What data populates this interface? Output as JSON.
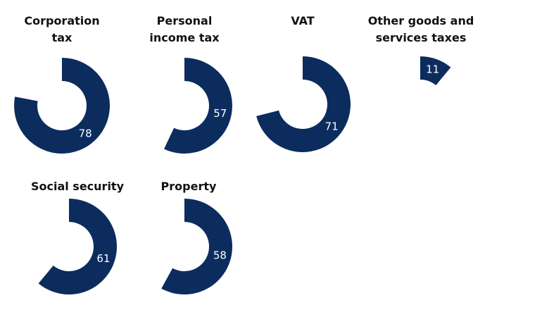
{
  "chart_data": [
    {
      "type": "donut",
      "title": "Corporation tax",
      "values": [
        78
      ],
      "color": "#0c2c5e",
      "ylim": [
        0,
        100
      ]
    },
    {
      "type": "donut",
      "title": "Personal income tax",
      "values": [
        57
      ],
      "color": "#0c2c5e",
      "ylim": [
        0,
        100
      ]
    },
    {
      "type": "donut",
      "title": "VAT",
      "values": [
        71
      ],
      "color": "#0c2c5e",
      "ylim": [
        0,
        100
      ]
    },
    {
      "type": "donut",
      "title": "Other goods and services taxes",
      "values": [
        11
      ],
      "color": "#0c2c5e",
      "ylim": [
        0,
        100
      ]
    },
    {
      "type": "donut",
      "title": "Social security",
      "values": [
        61
      ],
      "color": "#0c2c5e",
      "ylim": [
        0,
        100
      ]
    },
    {
      "type": "donut",
      "title": "Property",
      "values": [
        58
      ],
      "color": "#0c2c5e",
      "ylim": [
        0,
        100
      ]
    }
  ]
}
